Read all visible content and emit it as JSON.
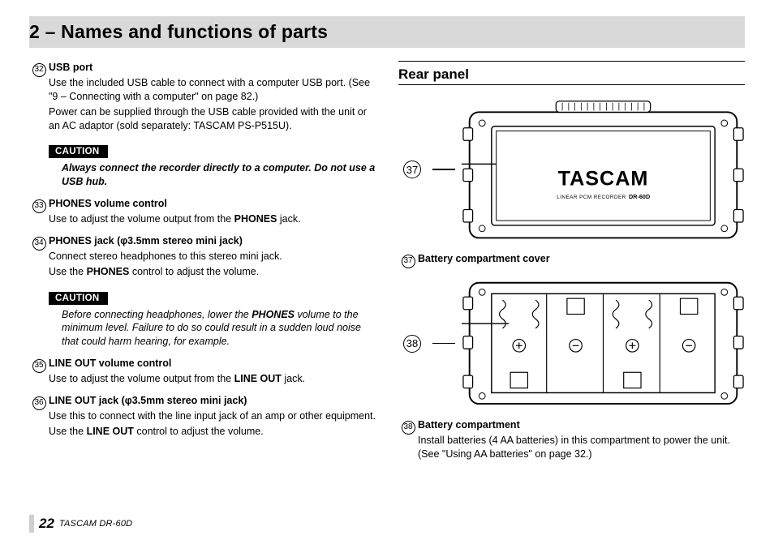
{
  "chapter_title": "2 – Names and functions of parts",
  "left": {
    "items": [
      {
        "num": "32",
        "head": "USB port",
        "paras": [
          "Use the included USB cable to connect with a computer USB port. (See \"9 – Connecting with a computer\" on page 82.)",
          "Power can be supplied through the USB cable provided with the unit or an AC adaptor (sold separately: TASCAM PS-P515U)."
        ]
      }
    ],
    "caution1": "Always connect the recorder directly to a computer. Do not use a USB hub.",
    "items2": [
      {
        "num": "33",
        "head": "PHONES volume control",
        "paras": [
          "Use to adjust the volume output from the <b>PHONES</b> jack."
        ]
      },
      {
        "num": "34",
        "head": "PHONES jack (φ3.5mm stereo mini jack)",
        "paras": [
          "Connect stereo headphones to this stereo mini jack.",
          "Use the <b>PHONES</b> control to adjust the volume."
        ]
      }
    ],
    "caution2": "Before connecting headphones, lower the <b>PHONES</b> volume to the minimum level. Failure to do so could result in a sudden loud noise that could harm hearing, for example.",
    "items3": [
      {
        "num": "35",
        "head": "LINE OUT volume control",
        "paras": [
          "Use to adjust the volume output from the <b>LINE OUT</b> jack."
        ]
      },
      {
        "num": "36",
        "head": "LINE OUT jack (φ3.5mm stereo mini jack)",
        "paras": [
          "Use this to connect with the line input jack of an amp or other equipment.",
          "Use the <b>LINE OUT</b> control to adjust the volume."
        ]
      }
    ],
    "caution_label": "CAUTION"
  },
  "right": {
    "section_title": "Rear panel",
    "callout37": "37",
    "callout38": "38",
    "item37": {
      "num": "37",
      "head": "Battery compartment cover"
    },
    "item38": {
      "num": "38",
      "head": "Battery compartment",
      "paras": [
        "Install batteries (4 AA batteries) in this compartment to power the unit. (See \"Using AA batteries\" on page 32.)"
      ]
    },
    "brand": "TASCAM",
    "brand_sub": "LINEAR PCM RECORDER",
    "brand_model": "DR-60D"
  },
  "footer": {
    "page": "22",
    "model": "TASCAM  DR-60D"
  }
}
